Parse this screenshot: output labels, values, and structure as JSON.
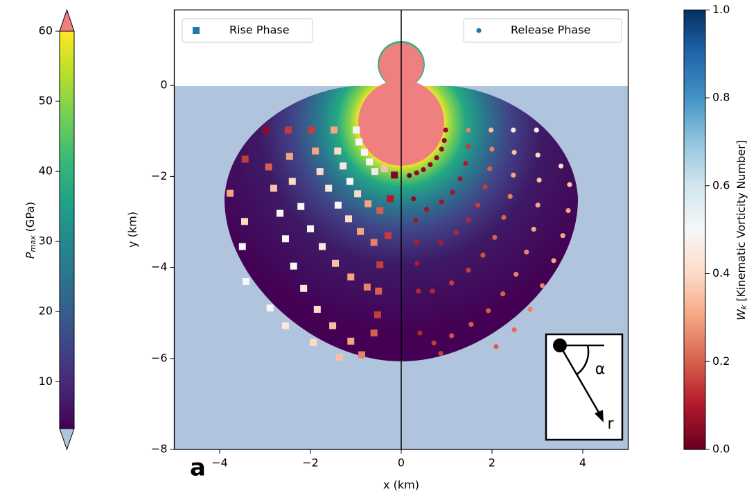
{
  "chart_data": {
    "type": "scatter",
    "xlabel": "x (km)",
    "ylabel": "y (km)",
    "xlim": [
      -5,
      5
    ],
    "ylim": [
      -8,
      1.66
    ],
    "xticks": [
      {
        "value": -4,
        "label": "−4"
      },
      {
        "value": -2,
        "label": "−2"
      },
      0,
      2,
      4
    ],
    "yticks": [
      {
        "value": -8,
        "label": "−8"
      },
      {
        "value": -6,
        "label": "−6"
      },
      {
        "value": -4,
        "label": "−4"
      },
      {
        "value": -2,
        "label": "−2"
      },
      0
    ],
    "panel_label": "a",
    "inset_labels": [
      "α",
      "r"
    ],
    "series": [
      {
        "name": "Rise Phase",
        "marker": "square",
        "color": "#1f77b4",
        "legend_loc": "upper left",
        "x": [
          -0.99,
          -0.93,
          -0.81,
          -0.7,
          -0.58,
          -0.37,
          -0.15,
          -1.48,
          -1.4,
          -1.28,
          -1.13,
          -0.96,
          -0.73,
          -0.47,
          -0.24,
          -1.98,
          -1.89,
          -1.79,
          -1.6,
          -1.39,
          -1.16,
          -0.9,
          -0.6,
          -0.29,
          -2.49,
          -2.46,
          -2.4,
          -2.21,
          -2.0,
          -1.74,
          -1.45,
          -1.11,
          -0.75,
          -0.47,
          -2.98,
          -2.92,
          -2.81,
          -2.67,
          -2.55,
          -2.37,
          -2.15,
          -1.85,
          -1.51,
          -1.11,
          -0.5,
          -0.52,
          -3.44,
          -3.77,
          -3.45,
          -3.5,
          -3.42,
          -2.89,
          -2.55,
          -1.94,
          -1.36,
          -0.87,
          -0.6
        ],
        "y": [
          -0.98,
          -1.24,
          -1.47,
          -1.68,
          -1.89,
          -1.83,
          -1.97,
          -0.98,
          -1.44,
          -1.77,
          -2.11,
          -2.38,
          -2.6,
          -2.75,
          -2.49,
          -0.98,
          -1.44,
          -1.89,
          -2.26,
          -2.63,
          -2.93,
          -3.21,
          -3.45,
          -3.3,
          -0.98,
          -1.56,
          -2.11,
          -2.66,
          -3.15,
          -3.54,
          -3.91,
          -4.21,
          -4.43,
          -3.94,
          -0.98,
          -1.79,
          -2.26,
          -2.81,
          -3.37,
          -3.97,
          -4.46,
          -4.92,
          -5.28,
          -5.62,
          -4.52,
          -5.04,
          -1.62,
          -2.37,
          -2.99,
          -3.54,
          -4.31,
          -4.89,
          -5.28,
          -5.65,
          -5.98,
          -5.92,
          -5.44
        ],
        "c": [
          0.5,
          0.5,
          0.5,
          0.5,
          0.45,
          0.35,
          0.03,
          0.3,
          0.4,
          0.45,
          0.5,
          0.4,
          0.3,
          0.2,
          0.1,
          0.15,
          0.3,
          0.4,
          0.45,
          0.5,
          0.4,
          0.3,
          0.25,
          0.15,
          0.15,
          0.3,
          0.4,
          0.5,
          0.5,
          0.45,
          0.35,
          0.3,
          0.25,
          0.15,
          0.05,
          0.2,
          0.35,
          0.5,
          0.5,
          0.5,
          0.45,
          0.4,
          0.35,
          0.3,
          0.2,
          0.15,
          0.15,
          0.3,
          0.4,
          0.5,
          0.5,
          0.5,
          0.45,
          0.4,
          0.35,
          0.25,
          0.2
        ]
      },
      {
        "name": "Release Phase",
        "marker": "circle",
        "color": "#1f77b4",
        "legend_loc": "upper right",
        "x": [
          0.18,
          0.34,
          0.49,
          0.64,
          0.78,
          0.89,
          0.95,
          0.98,
          1.48,
          1.48,
          1.42,
          1.3,
          1.13,
          0.89,
          0.56,
          0.27,
          1.98,
          2.0,
          1.95,
          1.85,
          1.69,
          1.48,
          1.21,
          0.87,
          0.32,
          2.47,
          2.49,
          2.47,
          2.4,
          2.26,
          2.06,
          1.8,
          1.48,
          1.11,
          0.69,
          0.34,
          2.98,
          3.01,
          3.04,
          3.01,
          2.92,
          2.76,
          2.53,
          2.24,
          1.92,
          1.54,
          1.11,
          0.72,
          0.35,
          0.38,
          3.52,
          3.71,
          3.68,
          3.56,
          3.36,
          3.11,
          2.84,
          2.49,
          2.09,
          0.87,
          0.41
        ],
        "y": [
          -1.98,
          -1.92,
          -1.85,
          -1.74,
          -1.59,
          -1.4,
          -1.21,
          -0.98,
          -0.98,
          -1.34,
          -1.71,
          -2.05,
          -2.35,
          -2.56,
          -2.72,
          -2.49,
          -0.98,
          -1.4,
          -1.83,
          -2.23,
          -2.63,
          -2.96,
          -3.24,
          -3.45,
          -2.96,
          -0.98,
          -1.47,
          -1.97,
          -2.44,
          -2.9,
          -3.34,
          -3.73,
          -4.06,
          -4.34,
          -4.52,
          -3.45,
          -0.98,
          -1.53,
          -2.08,
          -2.63,
          -3.16,
          -3.66,
          -4.15,
          -4.58,
          -4.95,
          -5.25,
          -5.5,
          -5.66,
          -3.91,
          -4.52,
          -1.77,
          -2.18,
          -2.75,
          -3.3,
          -3.85,
          -4.4,
          -4.92,
          -5.37,
          -5.74,
          -5.89,
          -5.44
        ],
        "c": [
          0.02,
          0.05,
          0.05,
          0.05,
          0.05,
          0.05,
          0.05,
          0.05,
          0.25,
          0.15,
          0.1,
          0.08,
          0.08,
          0.08,
          0.08,
          0.05,
          0.35,
          0.25,
          0.2,
          0.15,
          0.15,
          0.12,
          0.12,
          0.1,
          0.08,
          0.45,
          0.35,
          0.3,
          0.25,
          0.2,
          0.2,
          0.18,
          0.15,
          0.15,
          0.12,
          0.1,
          0.5,
          0.4,
          0.35,
          0.3,
          0.3,
          0.25,
          0.25,
          0.2,
          0.2,
          0.2,
          0.18,
          0.15,
          0.1,
          0.12,
          0.4,
          0.35,
          0.3,
          0.3,
          0.3,
          0.25,
          0.25,
          0.22,
          0.2,
          0.15,
          0.12
        ]
      }
    ],
    "colorbar": {
      "label": "W",
      "label_sub": "k",
      "label_rest": " [Kinematic Vorticity Number]",
      "cmap": "RdBu",
      "lim": [
        0,
        1
      ],
      "ticks": [
        {
          "value": 0,
          "label": "0.0"
        },
        0.2,
        0.4,
        0.6,
        0.8,
        {
          "value": 1,
          "label": "1.0"
        }
      ]
    },
    "field_colorbar": {
      "label": "P",
      "label_sub": "max",
      "label_rest": " (GPa)",
      "cmap": "viridis",
      "extend": "both",
      "lim": [
        3.3,
        60
      ],
      "ticks": [
        10,
        20,
        30,
        40,
        50,
        60
      ]
    }
  }
}
